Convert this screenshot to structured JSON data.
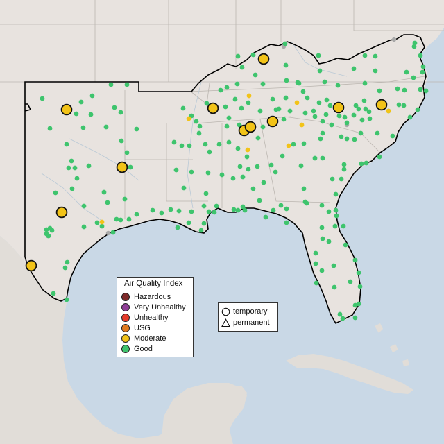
{
  "colors": {
    "ocean": "#c9d8e6",
    "land": "#e8e3df",
    "land_foreign": "#e1ddd8",
    "state_line": "#bbb6b0",
    "region_outline": "#000000",
    "water_lines": "#b9c9d6"
  },
  "legend": {
    "title": "Air Quality Index",
    "categories": [
      {
        "label": "Hazardous",
        "color": "#7e2a2a"
      },
      {
        "label": "Very Unhealthy",
        "color": "#8f3f97"
      },
      {
        "label": "Unhealthy",
        "color": "#e53a2a"
      },
      {
        "label": "USG",
        "color": "#e07a1f"
      },
      {
        "label": "Moderate",
        "color": "#f2c318"
      },
      {
        "label": "Good",
        "color": "#3ec46d"
      }
    ]
  },
  "marker_legend": {
    "items": [
      {
        "label": "temporary",
        "icon": "circle-icon"
      },
      {
        "label": "permanent",
        "icon": "triangle-icon"
      }
    ]
  },
  "monitors": {
    "moderate_large": [
      [
        96,
        158
      ],
      [
        380,
        85
      ],
      [
        307,
        156
      ],
      [
        176,
        241
      ],
      [
        89,
        306
      ],
      [
        45,
        383
      ],
      [
        352,
        188
      ],
      [
        361,
        183
      ],
      [
        393,
        175
      ],
      [
        488,
        155
      ],
      [
        550,
        151
      ]
    ],
    "moderate_small": [
      [
        359,
        138
      ],
      [
        272,
        171
      ],
      [
        428,
        148
      ],
      [
        435,
        180
      ],
      [
        357,
        216
      ],
      [
        416,
        210
      ],
      [
        147,
        320
      ],
      [
        560,
        160
      ]
    ],
    "good": [
      [
        61,
        142
      ],
      [
        133,
        138
      ],
      [
        160,
        122
      ],
      [
        183,
        122
      ],
      [
        117,
        147
      ],
      [
        131,
        165
      ],
      [
        165,
        155
      ],
      [
        110,
        164
      ],
      [
        174,
        162
      ],
      [
        153,
        183
      ],
      [
        197,
        186
      ],
      [
        72,
        185
      ],
      [
        96,
        208
      ],
      [
        120,
        184
      ],
      [
        175,
        203
      ],
      [
        183,
        220
      ],
      [
        188,
        241
      ],
      [
        103,
        232
      ],
      [
        108,
        242
      ],
      [
        99,
        242
      ],
      [
        128,
        239
      ],
      [
        104,
        272
      ],
      [
        80,
        278
      ],
      [
        111,
        257
      ],
      [
        121,
        297
      ],
      [
        150,
        277
      ],
      [
        180,
        287
      ],
      [
        155,
        292
      ],
      [
        186,
        316
      ],
      [
        174,
        317
      ],
      [
        197,
        309
      ],
      [
        140,
        321
      ],
      [
        147,
        326
      ],
      [
        163,
        335
      ],
      [
        168,
        316
      ],
      [
        121,
        327
      ],
      [
        72,
        329
      ],
      [
        67,
        331
      ],
      [
        67,
        337
      ],
      [
        75,
        332
      ],
      [
        70,
        340
      ],
      [
        97,
        378
      ],
      [
        94,
        386
      ],
      [
        77,
        423
      ],
      [
        96,
        432
      ],
      [
        251,
        205
      ],
      [
        265,
        271
      ],
      [
        258,
        304
      ],
      [
        272,
        321
      ],
      [
        276,
        305
      ],
      [
        297,
        279
      ],
      [
        294,
        297
      ],
      [
        294,
        322
      ],
      [
        309,
        306
      ],
      [
        290,
        332
      ],
      [
        301,
        305
      ],
      [
        246,
        302
      ],
      [
        233,
        307
      ],
      [
        220,
        303
      ],
      [
        256,
        328
      ],
      [
        383,
        313
      ],
      [
        350,
        298
      ],
      [
        343,
        303
      ],
      [
        353,
        303
      ],
      [
        337,
        302
      ],
      [
        312,
        297
      ],
      [
        320,
        252
      ],
      [
        350,
        255
      ],
      [
        358,
        244
      ],
      [
        365,
        272
      ],
      [
        374,
        289
      ],
      [
        394,
        303
      ],
      [
        405,
        296
      ],
      [
        413,
        301
      ],
      [
        413,
        321
      ],
      [
        442,
        293
      ],
      [
        438,
        272
      ],
      [
        440,
        291
      ],
      [
        464,
        296
      ],
      [
        474,
        305
      ],
      [
        484,
        303
      ],
      [
        485,
        311
      ],
      [
        483,
        326
      ],
      [
        464,
        328
      ],
      [
        465,
        344
      ],
      [
        474,
        348
      ],
      [
        495,
        326
      ],
      [
        498,
        353
      ],
      [
        481,
        383
      ],
      [
        455,
        365
      ],
      [
        455,
        380
      ],
      [
        464,
        390
      ],
      [
        456,
        408
      ],
      [
        519,
        413
      ],
      [
        512,
        440
      ],
      [
        512,
        458
      ],
      [
        494,
        459
      ],
      [
        490,
        453
      ],
      [
        517,
        438
      ],
      [
        482,
        414
      ],
      [
        505,
        406
      ],
      [
        517,
        393
      ],
      [
        512,
        375
      ],
      [
        484,
        280
      ],
      [
        479,
        258
      ],
      [
        492,
        258
      ],
      [
        496,
        244
      ],
      [
        496,
        237
      ],
      [
        521,
        236
      ],
      [
        528,
        235
      ],
      [
        547,
        226
      ],
      [
        566,
        196
      ],
      [
        544,
        192
      ],
      [
        520,
        192
      ],
      [
        522,
        173
      ],
      [
        497,
        169
      ],
      [
        500,
        200
      ],
      [
        511,
        201
      ],
      [
        517,
        157
      ],
      [
        513,
        152
      ],
      [
        525,
        145
      ],
      [
        527,
        157
      ],
      [
        532,
        161
      ],
      [
        500,
        177
      ],
      [
        560,
        160
      ],
      [
        575,
        151
      ],
      [
        583,
        130
      ],
      [
        586,
        104
      ],
      [
        596,
        112
      ],
      [
        609,
        104
      ],
      [
        610,
        96
      ],
      [
        606,
        80
      ],
      [
        597,
        67
      ],
      [
        598,
        62
      ],
      [
        614,
        131
      ],
      [
        606,
        129
      ],
      [
        591,
        169
      ],
      [
        602,
        158
      ],
      [
        582,
        152
      ],
      [
        573,
        128
      ],
      [
        547,
        131
      ],
      [
        526,
        120
      ],
      [
        541,
        102
      ],
      [
        541,
        81
      ],
      [
        526,
        80
      ],
      [
        510,
        99
      ],
      [
        487,
        123
      ],
      [
        468,
        118
      ],
      [
        461,
        102
      ],
      [
        459,
        80
      ],
      [
        431,
        120
      ],
      [
        437,
        132
      ],
      [
        413,
        116
      ],
      [
        412,
        94
      ],
      [
        411,
        63
      ],
      [
        343,
        81
      ],
      [
        365,
        79
      ],
      [
        368,
        108
      ],
      [
        379,
        121
      ],
      [
        349,
        97
      ],
      [
        342,
        121
      ],
      [
        339,
        143
      ],
      [
        348,
        156
      ],
      [
        325,
        154
      ],
      [
        330,
        170
      ],
      [
        345,
        180
      ],
      [
        327,
        182
      ],
      [
        330,
        205
      ],
      [
        343,
        214
      ],
      [
        316,
        208
      ],
      [
        302,
        219
      ],
      [
        296,
        208
      ],
      [
        287,
        192
      ],
      [
        288,
        182
      ],
      [
        264,
        156
      ],
      [
        276,
        167
      ],
      [
        283,
        175
      ],
      [
        298,
        149
      ],
      [
        318,
        130
      ],
      [
        327,
        126
      ],
      [
        393,
        143
      ],
      [
        398,
        158
      ],
      [
        412,
        141
      ],
      [
        418,
        160
      ],
      [
        409,
        172
      ],
      [
        443,
        141
      ],
      [
        460,
        148
      ],
      [
        471,
        144
      ],
      [
        476,
        152
      ],
      [
        454,
        168
      ],
      [
        452,
        160
      ],
      [
        440,
        163
      ],
      [
        470,
        165
      ],
      [
        478,
        180
      ],
      [
        462,
        200
      ],
      [
        438,
        207
      ],
      [
        423,
        208
      ],
      [
        407,
        225
      ],
      [
        391,
        238
      ],
      [
        397,
        248
      ],
      [
        371,
        240
      ],
      [
        380,
        263
      ],
      [
        434,
        239
      ],
      [
        454,
        228
      ],
      [
        465,
        228
      ],
      [
        465,
        192
      ],
      [
        492,
        197
      ],
      [
        429,
        119
      ],
      [
        465,
        175
      ],
      [
        510,
        166
      ],
      [
        533,
        171
      ],
      [
        489,
        167
      ],
      [
        402,
        157
      ],
      [
        375,
        160
      ],
      [
        379,
        183
      ],
      [
        372,
        199
      ],
      [
        356,
        226
      ],
      [
        346,
        240
      ],
      [
        336,
        257
      ],
      [
        300,
        249
      ],
      [
        276,
        248
      ],
      [
        254,
        245
      ],
      [
        262,
        210
      ],
      [
        273,
        210
      ],
      [
        358,
        148
      ]
    ],
    "gray": [
      [
        69,
        340
      ],
      [
        409,
        67
      ],
      [
        568,
        57
      ],
      [
        500,
        180
      ],
      [
        156,
        336
      ]
    ]
  }
}
